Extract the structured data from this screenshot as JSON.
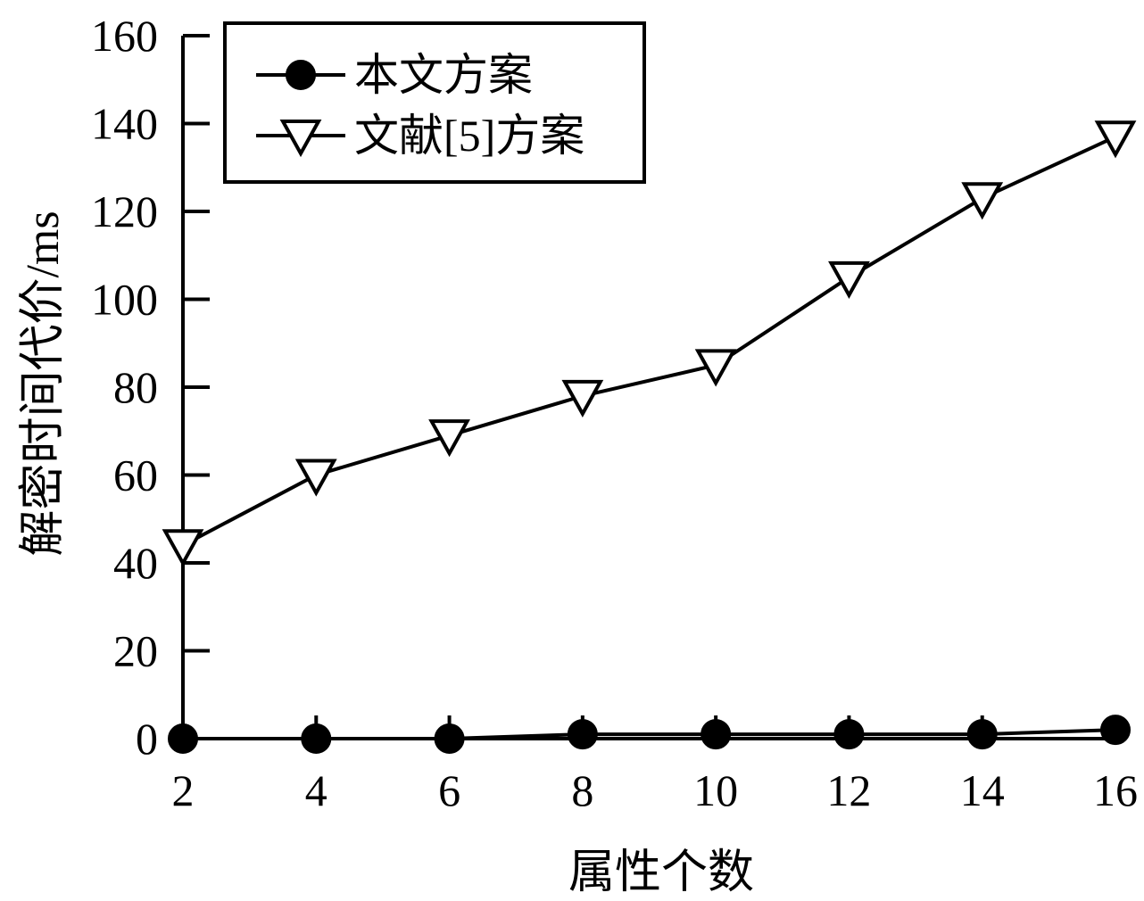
{
  "chart_data": {
    "type": "line",
    "xlabel": "属性个数",
    "ylabel": "解密时间代价/ms",
    "x": [
      2,
      4,
      6,
      8,
      10,
      12,
      14,
      16
    ],
    "xlim": [
      2,
      16
    ],
    "ylim": [
      0,
      160
    ],
    "xticks": [
      "2",
      "4",
      "6",
      "8",
      "10",
      "12",
      "14",
      "16"
    ],
    "yticks": [
      "0",
      "20",
      "40",
      "60",
      "80",
      "100",
      "120",
      "140",
      "160"
    ],
    "grid": false,
    "legend_position": "top-left",
    "series": [
      {
        "name": "本文方案",
        "marker": "filled-circle",
        "color": "#000000",
        "values": [
          0,
          0,
          0,
          1,
          1,
          1,
          1,
          2
        ]
      },
      {
        "name": "文献[5]方案",
        "marker": "open-triangle-down",
        "color": "#000000",
        "values": [
          44,
          60,
          69,
          78,
          85,
          105,
          123,
          137
        ]
      }
    ]
  }
}
